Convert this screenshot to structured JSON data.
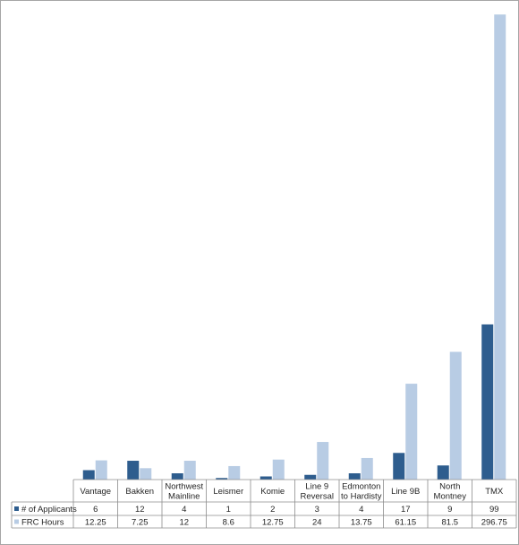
{
  "chart_data": {
    "type": "bar",
    "categories": [
      [
        "Vantage"
      ],
      [
        "Bakken"
      ],
      [
        "Northwest",
        "Mainline"
      ],
      [
        "Leismer"
      ],
      [
        "Komie"
      ],
      [
        "Line 9",
        "Reversal"
      ],
      [
        "Edmonton",
        "to Hardisty"
      ],
      [
        "Line 9B"
      ],
      [
        "North",
        "Montney"
      ],
      [
        "TMX"
      ]
    ],
    "series": [
      {
        "name": "# of Applicants",
        "color": "#2e5d8e",
        "values": [
          6,
          12,
          4,
          1,
          2,
          3,
          4,
          17,
          9,
          99
        ],
        "labels": [
          "6",
          "12",
          "4",
          "1",
          "2",
          "3",
          "4",
          "17",
          "9",
          "99"
        ]
      },
      {
        "name": "FRC Hours",
        "color": "#b8cce4",
        "values": [
          12.25,
          7.25,
          12,
          8.6,
          12.75,
          24,
          13.75,
          61.15,
          81.5,
          296.75
        ],
        "labels": [
          "12.25",
          "7.25",
          "12",
          "8.6",
          "12.75",
          "24",
          "13.75",
          "61.15",
          "81.5",
          "296.75"
        ]
      }
    ],
    "ylim": [
      0,
      300
    ],
    "grid": false,
    "legend": "data-table-left",
    "data_table": true
  }
}
